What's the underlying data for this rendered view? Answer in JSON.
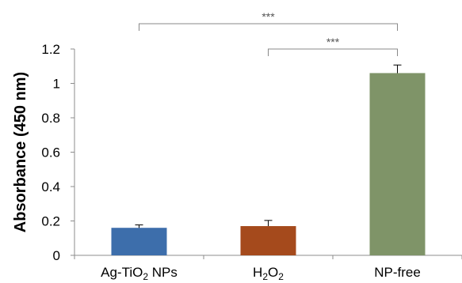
{
  "chart_data": {
    "type": "bar",
    "title": "",
    "xlabel": "",
    "ylabel": "Absorbance (450 nm)",
    "ylim": [
      0,
      1.2
    ],
    "yticks": [
      "0",
      "0.2",
      "0.4",
      "0.6",
      "0.8",
      "1",
      "1.2"
    ],
    "yticks_values": [
      0,
      0.2,
      0.4,
      0.6,
      0.8,
      1.0,
      1.2
    ],
    "grid": false,
    "categories": [
      {
        "base": "Ag-TiO",
        "sub": "2",
        "tail": " NPs"
      },
      {
        "base": "H",
        "sub": "2",
        "mid": "O",
        "sub2": "2"
      },
      {
        "base": "NP-free"
      }
    ],
    "values": [
      0.16,
      0.17,
      1.06
    ],
    "errors": [
      0.017,
      0.033,
      0.047
    ],
    "colors": [
      "#3d6eab",
      "#a54a1c",
      "#7f9468"
    ],
    "significance": [
      {
        "from": 0,
        "to": 2,
        "label": "***"
      },
      {
        "from": 1,
        "to": 2,
        "label": "***"
      }
    ]
  }
}
